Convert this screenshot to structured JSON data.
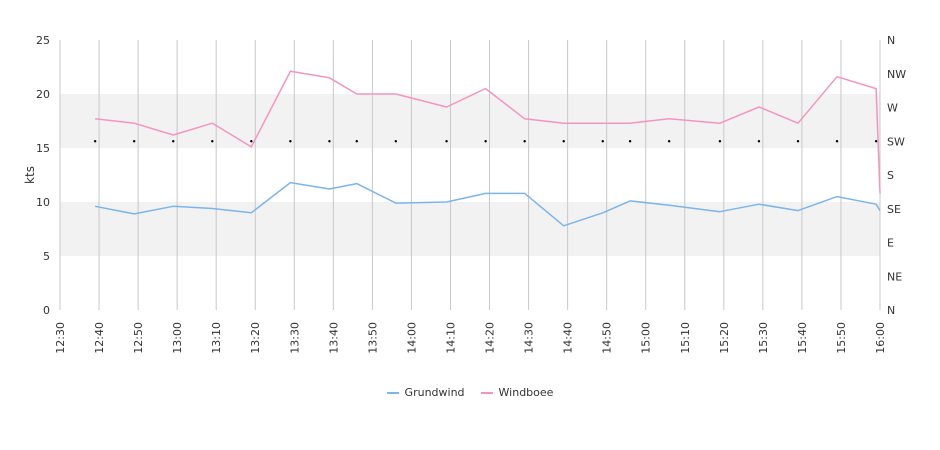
{
  "chart_data": {
    "type": "line",
    "title": "",
    "ylabel": "kts",
    "ylim": [
      0,
      25
    ],
    "yticks": [
      0,
      5,
      10,
      15,
      20,
      25
    ],
    "xlim": [
      "12:30",
      "16:00"
    ],
    "xticks": [
      "12:30",
      "12:40",
      "12:50",
      "13:00",
      "13:10",
      "13:20",
      "13:30",
      "13:40",
      "13:50",
      "14:00",
      "14:10",
      "14:20",
      "14:30",
      "14:40",
      "14:50",
      "15:00",
      "15:10",
      "15:20",
      "15:30",
      "15:40",
      "15:50",
      "16:00"
    ],
    "direction_axis": {
      "labels": [
        "N",
        "NW",
        "W",
        "SW",
        "S",
        "SE",
        "E",
        "NE",
        "N"
      ],
      "range_deg": [
        0,
        360
      ]
    },
    "grid": "vertical-lines-and-alternating-horizontal-bands",
    "legend_position": "bottom",
    "series": [
      {
        "name": "Grundwind",
        "color": "#7cb5ec",
        "points": [
          [
            "12:39",
            9.6
          ],
          [
            "12:49",
            8.9
          ],
          [
            "12:59",
            9.6
          ],
          [
            "13:09",
            9.4
          ],
          [
            "13:19",
            9.0
          ],
          [
            "13:29",
            11.8
          ],
          [
            "13:39",
            11.2
          ],
          [
            "13:46",
            11.7
          ],
          [
            "13:56",
            9.9
          ],
          [
            "14:09",
            10.0
          ],
          [
            "14:19",
            10.8
          ],
          [
            "14:29",
            10.8
          ],
          [
            "14:39",
            7.8
          ],
          [
            "14:49",
            9.0
          ],
          [
            "14:56",
            10.1
          ],
          [
            "15:06",
            9.7
          ],
          [
            "15:19",
            9.1
          ],
          [
            "15:29",
            9.8
          ],
          [
            "15:39",
            9.2
          ],
          [
            "15:49",
            10.5
          ],
          [
            "15:59",
            9.8
          ],
          [
            "16:00",
            9.2
          ]
        ]
      },
      {
        "name": "Windboee",
        "color": "#f495c0",
        "points": [
          [
            "12:39",
            17.7
          ],
          [
            "12:49",
            17.3
          ],
          [
            "12:59",
            16.2
          ],
          [
            "13:09",
            17.3
          ],
          [
            "13:19",
            15.1
          ],
          [
            "13:29",
            22.1
          ],
          [
            "13:39",
            21.5
          ],
          [
            "13:46",
            20.0
          ],
          [
            "13:56",
            20.0
          ],
          [
            "14:09",
            18.8
          ],
          [
            "14:19",
            20.5
          ],
          [
            "14:29",
            17.7
          ],
          [
            "14:39",
            17.3
          ],
          [
            "14:49",
            17.3
          ],
          [
            "14:56",
            17.3
          ],
          [
            "15:06",
            17.7
          ],
          [
            "15:19",
            17.3
          ],
          [
            "15:29",
            18.8
          ],
          [
            "15:39",
            17.3
          ],
          [
            "15:49",
            21.6
          ],
          [
            "15:59",
            20.5
          ],
          [
            "16:00",
            10.8
          ]
        ]
      },
      {
        "name": "",
        "type": "scatter",
        "color": "#000000",
        "points": [
          [
            "12:39",
            225
          ],
          [
            "12:49",
            225
          ],
          [
            "12:59",
            225
          ],
          [
            "13:09",
            225
          ],
          [
            "13:19",
            225
          ],
          [
            "13:29",
            225
          ],
          [
            "13:39",
            225
          ],
          [
            "13:46",
            225
          ],
          [
            "13:56",
            225
          ],
          [
            "14:09",
            225
          ],
          [
            "14:19",
            225
          ],
          [
            "14:29",
            225
          ],
          [
            "14:39",
            225
          ],
          [
            "14:49",
            225
          ],
          [
            "14:56",
            225
          ],
          [
            "15:06",
            225
          ],
          [
            "15:19",
            225
          ],
          [
            "15:29",
            225
          ],
          [
            "15:39",
            225
          ],
          [
            "15:49",
            225
          ],
          [
            "15:59",
            225
          ]
        ]
      }
    ]
  }
}
